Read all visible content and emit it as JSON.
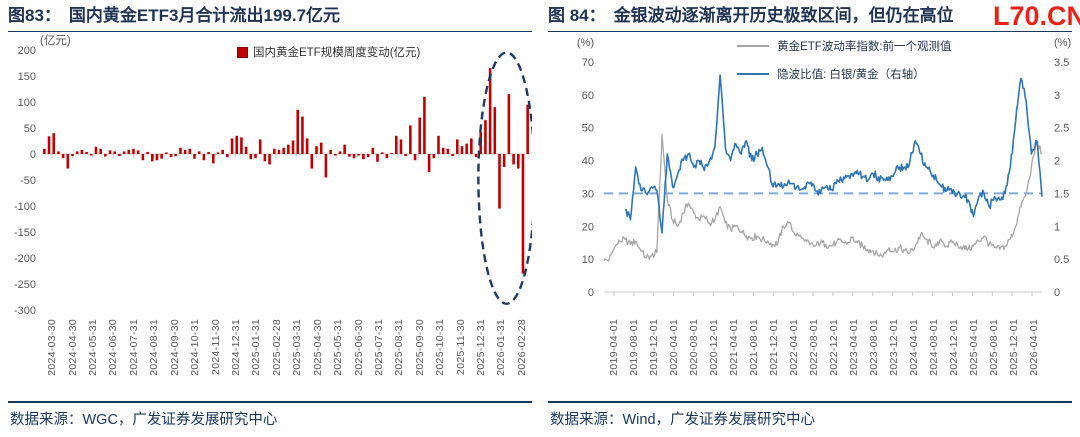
{
  "watermark": "L70.CN",
  "panels": {
    "left": {
      "figure_label": "图83：",
      "title": "国内黄金ETF3月合计流出199.7亿元",
      "legend": "国内黄金ETF规模周度变动(亿元)",
      "source": "数据来源：WGC，广发证券发展研究中心"
    },
    "right": {
      "figure_label": "图 84：",
      "title": "金银波动逐渐离开历史极致区间，但仍在高位",
      "legend_gray": "黄金ETF波动率指数:前一个观测值",
      "legend_blue": "隐波比值: 白银/黄金（右轴）",
      "source": "数据来源：Wind，广发证券发展研究中心"
    }
  },
  "chart_data": [
    {
      "type": "bar",
      "title": "国内黄金ETF3月合计流出199.7亿元",
      "series_name": "国内黄金ETF规模周度变动(亿元)",
      "ylabel_unit": "(亿元)",
      "ylim": [
        -300,
        200
      ],
      "yticks": [
        200,
        150,
        100,
        50,
        0,
        -50,
        -100,
        -150,
        -200,
        -250,
        -300
      ],
      "grid": false,
      "bar_color": "#C00000",
      "axis_color": "#C8C8C8",
      "x_tick_labels": [
        "2024-03-30",
        "2024-04-30",
        "2024-05-31",
        "2024-06-30",
        "2024-07-31",
        "2024-08-31",
        "2024-09-30",
        "2024-10-31",
        "2024-11-30",
        "2024-12-31",
        "2025-01-31",
        "2025-02-28",
        "2025-03-31",
        "2025-04-30",
        "2025-05-31",
        "2025-06-30",
        "2025-07-31",
        "2025-08-31",
        "2025-09-30",
        "2025-10-31",
        "2025-11-30",
        "2025-12-31",
        "2026-01-31",
        "2026-02-28"
      ],
      "x_frequency": "weekly",
      "values": [
        10,
        34,
        40,
        5,
        -8,
        -28,
        -4,
        5,
        8,
        4,
        -3,
        14,
        10,
        -5,
        7,
        5,
        -4,
        5,
        8,
        10,
        7,
        -12,
        4,
        -14,
        -12,
        -9,
        3,
        -6,
        -4,
        12,
        8,
        10,
        -9,
        5,
        -12,
        4,
        -18,
        3,
        8,
        -6,
        30,
        35,
        32,
        14,
        -10,
        -8,
        28,
        -14,
        -20,
        10,
        8,
        12,
        18,
        26,
        85,
        72,
        30,
        -28,
        15,
        22,
        -45,
        8,
        -3,
        5,
        18,
        -5,
        -8,
        -3,
        -10,
        -6,
        12,
        -15,
        3,
        -8,
        2,
        35,
        28,
        -4,
        55,
        -12,
        70,
        110,
        -35,
        -8,
        35,
        12,
        10,
        -4,
        28,
        15,
        20,
        30,
        -6,
        42,
        65,
        165,
        90,
        -105,
        -25,
        115,
        -20,
        -28,
        -230,
        95
      ],
      "highlight": {
        "shape": "dashed-ellipse",
        "meaning": "March 2026 large outflows circled",
        "color": "#1F3864",
        "center_bar_index": 98.5,
        "rx_bars": 6,
        "y_top": 195,
        "y_bottom": -288
      }
    },
    {
      "type": "line",
      "title": "金银波动逐渐离开历史极致区间，但仍在高位",
      "left_ylabel_unit": "(%)",
      "right_ylabel_unit": "(%)",
      "left_ylim": [
        0,
        70
      ],
      "right_ylim": [
        0,
        3.5
      ],
      "left_yticks": [
        70,
        60,
        50,
        40,
        30,
        20,
        10,
        0
      ],
      "right_yticks": [
        3.5,
        3,
        2.5,
        2,
        1.5,
        1,
        0.5,
        0
      ],
      "grid": false,
      "legend_position": "top-center",
      "x_tick_labels": [
        "2019-04-01",
        "2019-08-01",
        "2019-12-01",
        "2020-04-01",
        "2020-08-01",
        "2020-12-01",
        "2021-04-01",
        "2021-08-01",
        "2021-12-01",
        "2022-04-01",
        "2022-08-01",
        "2022-12-01",
        "2023-04-01",
        "2023-08-01",
        "2023-12-01",
        "2024-04-01",
        "2024-08-01",
        "2024-12-01",
        "2025-04-01",
        "2025-08-01",
        "2025-12-01",
        "2026-04-01"
      ],
      "x_frequency": "monthly",
      "x_start": "2019-04",
      "reference_line": {
        "axis": "right",
        "value": 1.5,
        "left_equivalent": 30,
        "style": "dashed",
        "color": "#7FAADC"
      },
      "series": [
        {
          "name": "黄金ETF波动率指数:前一个观测值",
          "axis": "left",
          "color": "#A6A6A6",
          "noise": 1.1,
          "values": [
            9.5,
            10,
            13.5,
            15.5,
            16,
            14.5,
            15.5,
            12.5,
            10.5,
            11,
            12,
            48,
            28,
            22,
            20,
            24,
            27,
            24,
            22,
            23,
            21,
            22,
            26,
            21,
            19,
            20,
            18.5,
            17,
            16.5,
            17,
            16,
            15.5,
            14.5,
            15,
            20,
            21,
            18,
            17,
            15.5,
            14.5,
            14,
            15,
            14.5,
            14,
            15,
            15.5,
            14.5,
            16.5,
            15,
            14,
            13,
            12.5,
            11,
            11.5,
            13.5,
            12.5,
            13.5,
            12.5,
            12,
            14,
            17.5,
            16,
            14.5,
            14,
            15.5,
            14,
            15,
            14.5,
            13.5,
            13,
            14,
            15.5,
            17,
            14.5,
            13.5,
            13,
            14,
            16,
            20,
            26,
            30,
            38,
            46,
            42
          ]
        },
        {
          "name": "隐波比值: 白银/黄金（右轴）",
          "axis": "right",
          "color": "#2E75B6",
          "noise": 0.065,
          "values": [
            null,
            null,
            null,
            null,
            1.25,
            1.1,
            1.9,
            1.55,
            1.5,
            1.6,
            1.55,
            0.9,
            2.1,
            1.6,
            1.8,
            2.0,
            2.1,
            1.9,
            2.0,
            1.85,
            2.0,
            2.2,
            3.3,
            2.2,
            2.0,
            2.25,
            2.1,
            2.3,
            2.0,
            2.1,
            2.2,
            1.9,
            1.6,
            1.65,
            1.6,
            1.7,
            1.65,
            1.55,
            1.6,
            1.65,
            1.55,
            1.5,
            1.6,
            1.55,
            1.65,
            1.7,
            1.75,
            1.8,
            1.85,
            1.75,
            1.7,
            1.8,
            1.75,
            1.7,
            1.75,
            1.8,
            1.9,
            1.9,
            2.0,
            2.3,
            2.1,
            1.9,
            1.8,
            1.7,
            1.6,
            1.55,
            1.5,
            1.5,
            1.45,
            1.4,
            1.15,
            1.45,
            1.5,
            1.3,
            1.45,
            1.4,
            1.5,
            1.9,
            2.6,
            3.25,
            2.9,
            2.1,
            2.3,
            1.45
          ]
        }
      ]
    }
  ]
}
